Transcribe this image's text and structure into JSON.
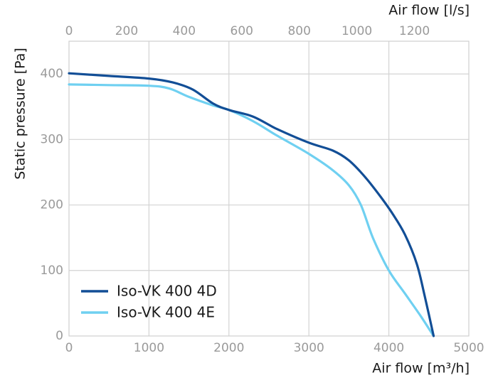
{
  "chart_data": {
    "type": "line",
    "xlabel": "Air flow [m³/h]",
    "x2label": "Air flow [l/s]",
    "ylabel": "Static pressure [Pa]",
    "xlim": [
      0,
      5000
    ],
    "x2lim": [
      0,
      1389
    ],
    "ylim": [
      0,
      450
    ],
    "xticks": [
      0,
      1000,
      2000,
      3000,
      4000,
      5000
    ],
    "x2ticks": [
      0,
      200,
      400,
      600,
      800,
      1000,
      1200
    ],
    "yticks": [
      0,
      100,
      200,
      300,
      400
    ],
    "grid": true,
    "legend_position": "bottom-left",
    "series": [
      {
        "name": "Iso-VK 400 4D",
        "color": "#124e96",
        "x": [
          0,
          500,
          1000,
          1300,
          1550,
          1800,
          2000,
          2300,
          2600,
          3000,
          3300,
          3500,
          3700,
          3900,
          4050,
          4200,
          4350,
          4450,
          4560
        ],
        "y": [
          401,
          397,
          393,
          387,
          376,
          355,
          345,
          335,
          316,
          295,
          283,
          268,
          243,
          212,
          186,
          155,
          110,
          60,
          0
        ]
      },
      {
        "name": "Iso-VK 400 4E",
        "color": "#6fd0f1",
        "x": [
          0,
          500,
          1000,
          1250,
          1500,
          1800,
          2000,
          2300,
          2600,
          3000,
          3300,
          3500,
          3650,
          3800,
          4000,
          4200,
          4400,
          4560
        ],
        "y": [
          384,
          383,
          382,
          378,
          365,
          352,
          345,
          328,
          306,
          278,
          253,
          230,
          200,
          150,
          100,
          65,
          30,
          0
        ]
      }
    ]
  }
}
